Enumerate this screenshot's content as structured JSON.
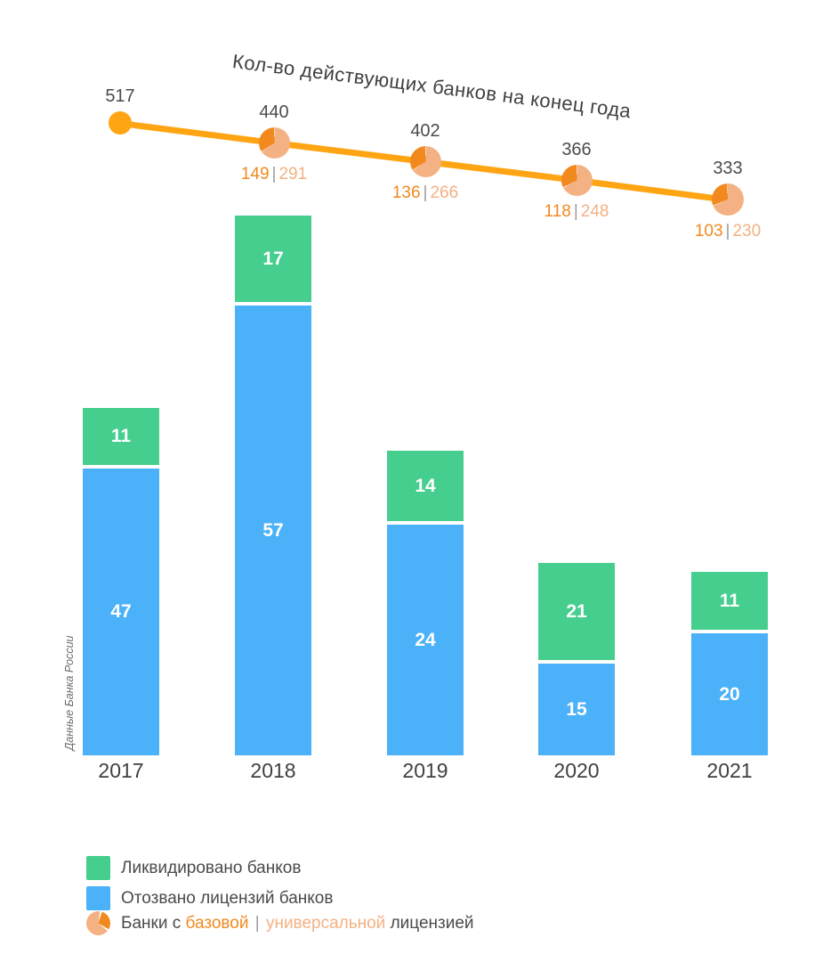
{
  "chart": {
    "title": "Кол-во действующих банков на конец года",
    "source": "Данные Банка России",
    "legend": {
      "liquidated": "Ликвидировано банков",
      "revoked": "Отозвано лицензий банков",
      "license_prefix": "Банки с",
      "license_base": "базовой",
      "license_separator": "|",
      "license_universal": "универсальной",
      "license_suffix": "лицензией"
    },
    "colors": {
      "green": "#45CE8D",
      "blue": "#4BB1F8",
      "line_orange": "#FFA413",
      "base_orange": "#F1891E",
      "universal_peach": "#F4B183",
      "text_dark": "#3F4040",
      "text_gray": "#4B4B4B",
      "separator_gray": "#9B9B9B",
      "source_gray": "#6A6A6A"
    }
  },
  "chart_data": {
    "type": "combo: stacked bar + line with pie-split markers",
    "categories": [
      "2017",
      "2018",
      "2019",
      "2020",
      "2021"
    ],
    "series": [
      {
        "name": "Ликвидировано банков",
        "type": "bar",
        "stack_position": "top",
        "color": "#45CE8D",
        "values": [
          11,
          17,
          14,
          21,
          11
        ]
      },
      {
        "name": "Отозвано лицензий банков",
        "type": "bar",
        "stack_position": "bottom",
        "color": "#4BB1F8",
        "values": [
          47,
          57,
          24,
          15,
          20
        ]
      },
      {
        "name": "Кол-во действующих банков на конец года",
        "type": "line",
        "color": "#FFA413",
        "values": [
          517,
          440,
          402,
          366,
          333
        ]
      },
      {
        "name": "Банки с базовой лицензией",
        "type": "pie-marker-wedge",
        "color": "#F1891E",
        "values": [
          null,
          149,
          136,
          118,
          103
        ]
      },
      {
        "name": "Банки с универсальной лицензией",
        "type": "pie-marker-rest",
        "color": "#F4B183",
        "values": [
          null,
          291,
          266,
          248,
          230
        ]
      }
    ],
    "license_label_format": "base | universal",
    "grid": false,
    "axes_visible": false,
    "legend_position": "bottom-left",
    "source_note": "Данные Банка России"
  }
}
